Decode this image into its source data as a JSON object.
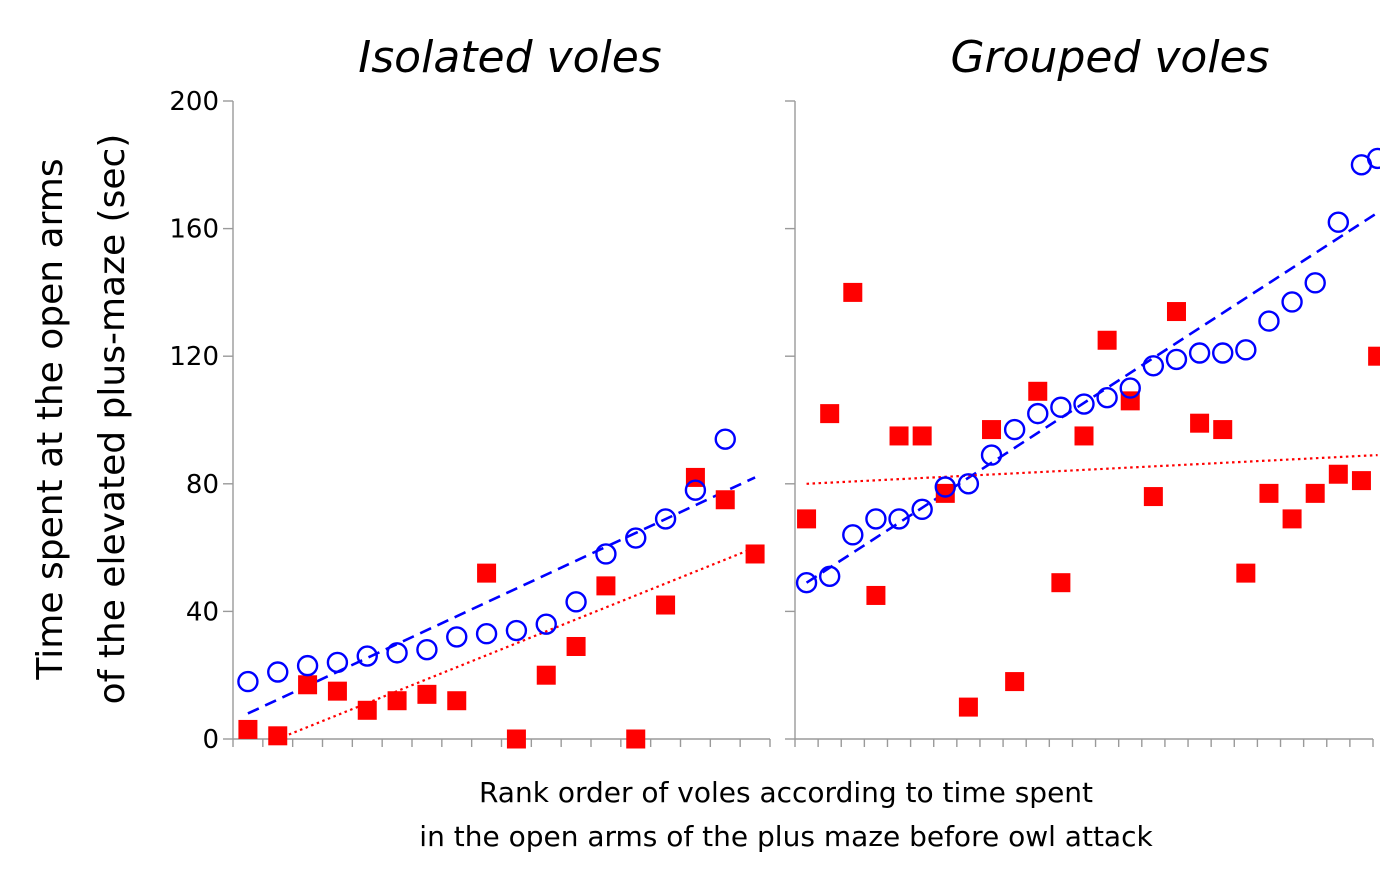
{
  "chart_data": [
    {
      "type": "scatter",
      "title": "Isolated voles",
      "ylabel": "Time spent at the open arms of the elevated plus-maze (sec)",
      "ylim": [
        0,
        200
      ],
      "yticks": [
        0,
        40,
        80,
        120,
        160,
        200
      ],
      "xlim": [
        0.5,
        18.5
      ],
      "grid": false,
      "series": [
        {
          "marker": "open-circle",
          "color": "#0000ff",
          "x": [
            1,
            2,
            3,
            4,
            5,
            6,
            7,
            8,
            9,
            10,
            11,
            12,
            13,
            14,
            15,
            16,
            17
          ],
          "y": [
            18,
            21,
            23,
            24,
            26,
            27,
            28,
            32,
            33,
            34,
            36,
            43,
            58,
            63,
            69,
            78,
            94
          ]
        },
        {
          "marker": "filled-square",
          "color": "#ff0000",
          "x": [
            1,
            2,
            3,
            4,
            5,
            6,
            7,
            8,
            9,
            10,
            11,
            12,
            13,
            14,
            15,
            16,
            17,
            18
          ],
          "y": [
            3,
            1,
            17,
            15,
            9,
            12,
            14,
            12,
            52,
            0,
            20,
            29,
            48,
            0,
            42,
            82,
            75,
            58
          ]
        }
      ],
      "trendlines": [
        {
          "color": "#0000ff",
          "style": "dashed",
          "x": [
            1,
            18
          ],
          "y": [
            8,
            82
          ]
        },
        {
          "color": "#ff0000",
          "style": "dotted",
          "x": [
            2,
            18
          ],
          "y": [
            0,
            60
          ]
        }
      ]
    },
    {
      "type": "scatter",
      "title": "Grouped voles",
      "ylim": [
        0,
        200
      ],
      "xlim": [
        0.5,
        25.5
      ],
      "grid": false,
      "series": [
        {
          "marker": "open-circle",
          "color": "#0000ff",
          "x": [
            1,
            2,
            3,
            4,
            5,
            6,
            7,
            8,
            9,
            10,
            11,
            12,
            13,
            14,
            15,
            16,
            17,
            18,
            19,
            20,
            21,
            22,
            23,
            24,
            25
          ],
          "y": [
            49,
            51,
            64,
            69,
            69,
            72,
            79,
            80,
            89,
            97,
            102,
            104,
            105,
            107,
            110,
            117,
            119,
            121,
            121,
            122,
            131,
            137,
            143,
            162,
            180
          ]
        },
        {
          "marker": "filled-square",
          "color": "#ff0000",
          "x": [
            1,
            2,
            3,
            4,
            5,
            6,
            7,
            8,
            9,
            10,
            11,
            12,
            13,
            14,
            15,
            16,
            17,
            18,
            19,
            20,
            21,
            22,
            23,
            24,
            25
          ],
          "y": [
            69,
            102,
            140,
            45,
            95,
            95,
            77,
            10,
            97,
            18,
            109,
            49,
            95,
            125,
            106,
            76,
            134,
            99,
            97,
            52,
            77,
            69,
            77,
            83,
            81
          ]
        }
      ],
      "extra_points": [
        {
          "series_color": "#0000ff",
          "marker": "open-circle",
          "x": 25.7,
          "y": 182
        },
        {
          "series_color": "#ff0000",
          "marker": "filled-square",
          "x": 25.7,
          "y": 120
        }
      ],
      "trendlines": [
        {
          "color": "#0000ff",
          "style": "dashed",
          "x": [
            1,
            25.7
          ],
          "y": [
            49,
            165
          ]
        },
        {
          "color": "#ff0000",
          "style": "dotted",
          "x": [
            1,
            25.7
          ],
          "y": [
            80,
            89
          ]
        }
      ]
    }
  ],
  "labels": {
    "ylabel_line1": "Time spent at the open arms",
    "ylabel_line2": "of the elevated plus-maze (sec)",
    "xlabel_line1": "Rank order of voles according to time  spent",
    "xlabel_line2": "in the open arms of the plus maze before owl attack"
  }
}
